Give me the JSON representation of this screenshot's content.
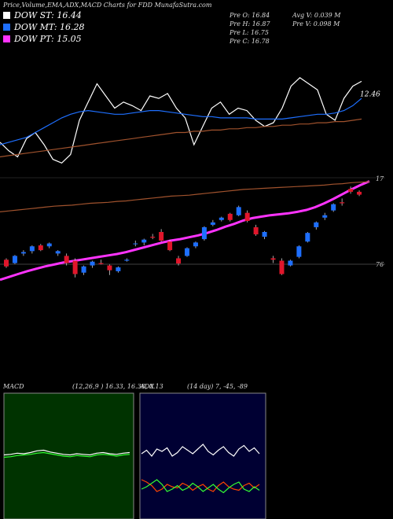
{
  "chart_data": [
    {
      "type": "line",
      "title": "Price,Volume,EMA,ADX,MACD Charts for FDD MunafaSutra.com",
      "legend": [
        {
          "label": "DOW ST: 16.44",
          "color": "#ffffff"
        },
        {
          "label": "DOW MT: 16.28",
          "color": "#1e6fff"
        },
        {
          "label": "DOW PT: 15.05",
          "color": "#ff33ff"
        }
      ],
      "stats": [
        "Pre  O: 16.84",
        "Pre  H: 16.87",
        "Pre  L: 16.75",
        "Pre  C: 16.78",
        "Avg V: 0.039 M",
        "Pre  V: 0.098 M"
      ],
      "annotation": "12.46",
      "ylim": [
        0,
        100
      ],
      "series": [
        {
          "color": "#ffffff",
          "values": [
            22,
            15,
            10,
            25,
            30,
            20,
            8,
            5,
            12,
            40,
            55,
            70,
            60,
            50,
            55,
            52,
            48,
            60,
            58,
            62,
            50,
            42,
            20,
            35,
            50,
            55,
            45,
            50,
            48,
            40,
            35,
            38,
            50,
            68,
            75,
            70,
            65,
            45,
            40,
            58,
            68,
            72
          ]
        },
        {
          "color": "#1e6fff",
          "values": [
            20,
            22,
            24,
            26,
            30,
            34,
            38,
            42,
            45,
            47,
            48,
            47,
            46,
            45,
            45,
            46,
            47,
            48,
            48,
            47,
            46,
            45,
            44,
            43,
            43,
            42,
            42,
            42,
            42,
            41,
            41,
            41,
            41,
            42,
            43,
            44,
            45,
            45,
            46,
            48,
            52,
            58
          ]
        },
        {
          "color": "#a0522d",
          "values": [
            10,
            11,
            12,
            13,
            14,
            15,
            16,
            17,
            18,
            19,
            20,
            21,
            22,
            23,
            24,
            25,
            26,
            27,
            28,
            29,
            30,
            30,
            31,
            31,
            32,
            32,
            33,
            33,
            34,
            34,
            35,
            35,
            36,
            36,
            37,
            37,
            38,
            38,
            39,
            39,
            40,
            41
          ]
        }
      ]
    },
    {
      "type": "candlestick",
      "ylim": [
        14.8,
        17.2
      ],
      "annotations": [
        "17",
        "76"
      ],
      "up_color": "#1e6fff",
      "down_color": "#e0162b",
      "open": [
        15.42,
        15.35,
        15.55,
        15.6,
        15.72,
        15.7,
        15.55,
        15.5,
        15.4,
        15.15,
        15.3,
        15.35,
        15.3,
        15.18,
        15.4,
        15.75,
        15.78,
        15.9,
        16.0,
        15.8,
        15.45,
        15.5,
        15.7,
        15.85,
        16.15,
        16.25,
        16.38,
        16.35,
        16.4,
        16.1,
        15.9,
        15.45,
        15.4,
        15.3,
        15.48,
        15.8,
        16.1,
        16.3,
        16.45,
        16.62,
        16.9,
        16.84
      ],
      "high": [
        15.45,
        15.52,
        15.62,
        15.72,
        15.75,
        15.78,
        15.62,
        15.55,
        15.45,
        15.3,
        15.4,
        15.42,
        15.32,
        15.28,
        15.45,
        15.82,
        15.86,
        15.96,
        16.06,
        15.84,
        15.5,
        15.68,
        15.8,
        16.12,
        16.25,
        16.32,
        16.4,
        16.55,
        16.45,
        16.15,
        16.02,
        15.5,
        15.45,
        15.42,
        15.72,
        16.0,
        16.22,
        16.4,
        16.6,
        16.7,
        16.95,
        16.87
      ],
      "low": [
        15.25,
        15.33,
        15.5,
        15.55,
        15.6,
        15.66,
        15.5,
        15.3,
        15.05,
        15.1,
        15.25,
        15.32,
        15.1,
        15.15,
        15.38,
        15.7,
        15.72,
        15.85,
        15.8,
        15.6,
        15.3,
        15.48,
        15.66,
        15.82,
        16.12,
        16.22,
        16.22,
        16.33,
        16.2,
        15.92,
        15.85,
        15.35,
        15.1,
        15.28,
        15.45,
        15.78,
        16.05,
        16.25,
        16.42,
        16.55,
        16.8,
        16.75
      ],
      "close": [
        15.28,
        15.5,
        15.58,
        15.7,
        15.62,
        15.76,
        15.6,
        15.35,
        15.12,
        15.28,
        15.38,
        15.33,
        15.2,
        15.26,
        15.42,
        15.76,
        15.84,
        15.88,
        15.82,
        15.62,
        15.34,
        15.66,
        15.78,
        16.1,
        16.2,
        16.3,
        16.25,
        16.52,
        16.23,
        15.95,
        16.0,
        15.42,
        15.12,
        15.4,
        15.7,
        15.98,
        16.2,
        16.35,
        16.58,
        16.6,
        16.84,
        16.78
      ],
      "series": [
        {
          "color": "#ff33ff",
          "values": [
            15.0,
            15.06,
            15.12,
            15.18,
            15.23,
            15.28,
            15.32,
            15.36,
            15.39,
            15.42,
            15.45,
            15.48,
            15.51,
            15.54,
            15.58,
            15.63,
            15.68,
            15.73,
            15.78,
            15.82,
            15.85,
            15.89,
            15.93,
            15.98,
            16.04,
            16.11,
            16.17,
            16.24,
            16.29,
            16.32,
            16.35,
            16.37,
            16.39,
            16.42,
            16.46,
            16.52,
            16.6,
            16.69,
            16.79,
            16.89,
            16.98,
            17.06
          ]
        },
        {
          "color": "#a0522d",
          "values": [
            16.42,
            16.44,
            16.46,
            16.48,
            16.5,
            16.52,
            16.54,
            16.55,
            16.56,
            16.58,
            16.6,
            16.61,
            16.62,
            16.64,
            16.65,
            16.67,
            16.69,
            16.71,
            16.73,
            16.75,
            16.76,
            16.77,
            16.79,
            16.81,
            16.83,
            16.85,
            16.87,
            16.89,
            16.9,
            16.91,
            16.92,
            16.93,
            16.94,
            16.95,
            16.96,
            16.97,
            16.98,
            17.0,
            17.01,
            17.03,
            17.04,
            17.05
          ]
        }
      ]
    },
    {
      "type": "line",
      "title": "MACD",
      "subtitle": "(12,26,9 ) 16.33, 16.38, 0.13",
      "ylim": [
        -1,
        1
      ],
      "background": "#003300",
      "series": [
        {
          "color": "#ffffff",
          "values": [
            0.02,
            0.03,
            0.05,
            0.04,
            0.06,
            0.09,
            0.1,
            0.07,
            0.05,
            0.03,
            0.02,
            0.04,
            0.03,
            0.02,
            0.05,
            0.06,
            0.04,
            0.03,
            0.05,
            0.06
          ]
        },
        {
          "color": "#33ff33",
          "values": [
            -0.02,
            -0.01,
            0.01,
            0.02,
            0.03,
            0.05,
            0.06,
            0.04,
            0.02,
            0.0,
            -0.01,
            0.01,
            0.0,
            -0.01,
            0.02,
            0.03,
            0.02,
            0.0,
            0.02,
            0.03
          ]
        }
      ]
    },
    {
      "type": "line",
      "title": "ADX",
      "subtitle": "(14 day) 7, -45, -89",
      "ylim": [
        0,
        100
      ],
      "background": "#000033",
      "series": [
        {
          "color": "#ffffff",
          "values": [
            52,
            55,
            50,
            56,
            54,
            57,
            50,
            53,
            58,
            55,
            52,
            56,
            60,
            54,
            51,
            55,
            58,
            53,
            50,
            56,
            59,
            54,
            57,
            52
          ]
        },
        {
          "color": "#ff4500",
          "values": [
            30,
            28,
            25,
            20,
            22,
            26,
            24,
            23,
            27,
            25,
            21,
            24,
            26,
            22,
            20,
            25,
            28,
            24,
            22,
            21,
            25,
            27,
            23,
            26
          ]
        },
        {
          "color": "#33ff33",
          "values": [
            22,
            24,
            27,
            30,
            26,
            20,
            22,
            25,
            21,
            23,
            27,
            24,
            20,
            23,
            26,
            22,
            19,
            23,
            26,
            28,
            22,
            20,
            24,
            21
          ]
        }
      ]
    }
  ]
}
